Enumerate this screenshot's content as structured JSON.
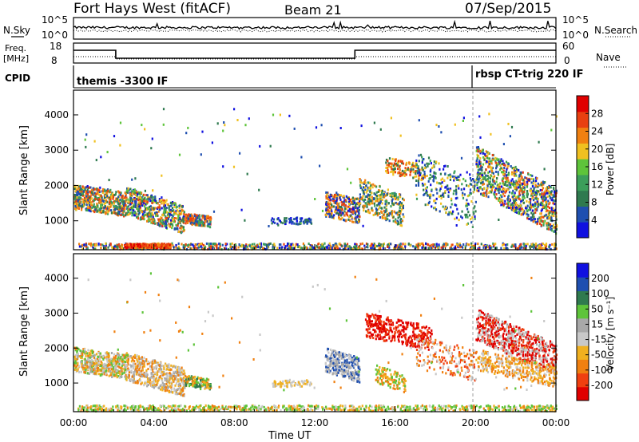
{
  "header": {
    "title": "Fort Hays West (fitACF)",
    "beam": "Beam 21",
    "date": "07/Sep/2015"
  },
  "top_panels": {
    "nsky_label": "N.Sky",
    "nsearch_label": "N.Search",
    "nsky_ticks": [
      "10^5",
      "10^0"
    ],
    "nsearch_ticks": [
      "10^5",
      "10^0"
    ],
    "freq_label_1": "Freq.",
    "freq_label_2": "[MHz]",
    "freq_ticks": [
      "18",
      "8"
    ],
    "nave_label": "Nave",
    "nave_ticks": [
      "60",
      "0"
    ],
    "cpid_label": "CPID",
    "cpid_1": "themis -3300 IF",
    "cpid_2": "rbsp CT-trig 220 IF"
  },
  "colors": {
    "power_scale": [
      "#1010e0",
      "#1f4fb0",
      "#2f7a4f",
      "#3c9e5a",
      "#5ec43a",
      "#f0c020",
      "#f08010",
      "#e84010",
      "#e00000"
    ],
    "velocity_scale": [
      "#e00000",
      "#f04010",
      "#f08010",
      "#f0b020",
      "#c8c8c8",
      "#a8a8a8",
      "#5ec43a",
      "#2f7a4f",
      "#1f4fb0",
      "#1010e0"
    ]
  },
  "chart_data": [
    {
      "type": "heatmap",
      "title": "Power",
      "xlabel": "",
      "ylabel": "Slant Range [km]",
      "xlim": [
        0,
        24
      ],
      "ylim": [
        180,
        4700
      ],
      "yticks": [
        "1000",
        "2000",
        "3000",
        "4000"
      ],
      "xticks": [
        "00:00",
        "04:00",
        "08:00",
        "12:00",
        "16:00",
        "20:00",
        "00:00"
      ],
      "colorbar_label": "Power [dB]",
      "colorbar_ticks": [
        "4",
        "8",
        "12",
        "16",
        "20",
        "24",
        "28"
      ],
      "clim": [
        0,
        32
      ],
      "grid": false
    },
    {
      "type": "heatmap",
      "title": "Velocity",
      "xlabel": "Time UT",
      "ylabel": "Slant Range [km]",
      "xlim": [
        0,
        24
      ],
      "ylim": [
        180,
        4700
      ],
      "yticks": [
        "1000",
        "2000",
        "3000",
        "4000"
      ],
      "xticks": [
        "00:00",
        "04:00",
        "08:00",
        "12:00",
        "16:00",
        "20:00",
        "00:00"
      ],
      "colorbar_label": "Velocity [m s⁻¹]",
      "colorbar_ticks": [
        "200",
        "100",
        "50",
        "15",
        "-15",
        "-50",
        "-100",
        "-200"
      ],
      "clim": [
        -250,
        250
      ],
      "grid": false
    }
  ]
}
